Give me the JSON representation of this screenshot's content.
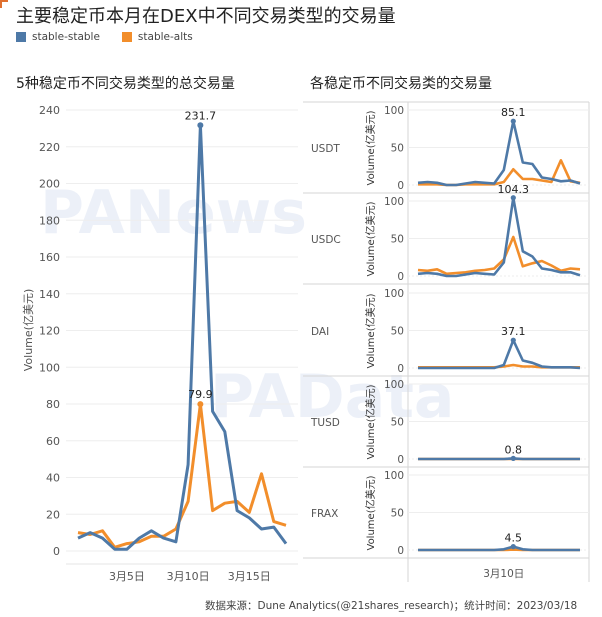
{
  "header": {
    "title": "主要稳定币本月在DEX中不同交易类型的交易量",
    "legend": [
      {
        "label": "stable-stable",
        "color": "#4e79a7"
      },
      {
        "label": "stable-alts",
        "color": "#f28e2b"
      }
    ]
  },
  "left_panel": {
    "title": "5种稳定币不同交易类型的总交易量"
  },
  "right_panel": {
    "title": "各稳定币不同交易类的交易量"
  },
  "footer": {
    "source": "数据来源：Dune Analytics(@21shares_research)；统计时间：2023/03/18"
  },
  "watermarks": [
    "PANews",
    "PAData"
  ],
  "colors": {
    "stable_stable": "#4e79a7",
    "stable_alts": "#f28e2b",
    "grid": "#eeeeee"
  },
  "chart_data": [
    {
      "type": "line",
      "title": "5种稳定币不同交易类型的总交易量",
      "xlabel": "",
      "ylabel": "Volume(亿美元)",
      "ylim": [
        0,
        240
      ],
      "yticks": [
        0,
        20,
        40,
        60,
        80,
        100,
        120,
        140,
        160,
        180,
        200,
        220,
        240
      ],
      "x": [
        "3月1日",
        "3月2日",
        "3月3日",
        "3月4日",
        "3月5日",
        "3月6日",
        "3月7日",
        "3月8日",
        "3月9日",
        "3月10日",
        "3月11日",
        "3月12日",
        "3月13日",
        "3月14日",
        "3月15日",
        "3月16日",
        "3月17日",
        "3月18日"
      ],
      "xtick_labels": [
        {
          "index": 4,
          "label": "3月5日"
        },
        {
          "index": 9,
          "label": "3月10日"
        },
        {
          "index": 14,
          "label": "3月15日"
        }
      ],
      "grid": true,
      "series": [
        {
          "name": "stable-stable",
          "color": "#4e79a7",
          "values": [
            7,
            10,
            7,
            1,
            1,
            7,
            11,
            7,
            5,
            47,
            231.7,
            76,
            65,
            22,
            18,
            12,
            13,
            4
          ]
        },
        {
          "name": "stable-alts",
          "color": "#f28e2b",
          "values": [
            10,
            9,
            11,
            2,
            4,
            5,
            8,
            8,
            12,
            27,
            79.9,
            22,
            26,
            27,
            21,
            42,
            16,
            14
          ]
        }
      ],
      "annotations": [
        {
          "series": "stable-stable",
          "index": 10,
          "text": "231.7"
        },
        {
          "series": "stable-alts",
          "index": 10,
          "text": "79.9"
        }
      ]
    },
    {
      "type": "line",
      "title": "各稳定币不同交易类的交易量",
      "ylabel": "Volume(亿美元)",
      "ylim": [
        0,
        100
      ],
      "yticks": [
        0,
        50,
        100
      ],
      "x": [
        "3月1日",
        "3月2日",
        "3月3日",
        "3月4日",
        "3月5日",
        "3月6日",
        "3月7日",
        "3月8日",
        "3月9日",
        "3月10日",
        "3月11日",
        "3月12日",
        "3月13日",
        "3月14日",
        "3月15日",
        "3月16日",
        "3月17日",
        "3月18日"
      ],
      "xtick_labels": [
        {
          "index": 9,
          "label": "3月10日"
        }
      ],
      "grid": true,
      "panels": [
        {
          "name": "USDT",
          "annotation": "85.1",
          "series": [
            {
              "name": "stable-stable",
              "values": [
                3,
                4,
                3,
                0,
                0,
                2,
                4,
                3,
                2,
                20,
                85.1,
                30,
                28,
                10,
                8,
                5,
                6,
                2
              ]
            },
            {
              "name": "stable-alts",
              "values": [
                1,
                1,
                1,
                0,
                0,
                1,
                1,
                1,
                1,
                4,
                21,
                8,
                8,
                6,
                4,
                33,
                5,
                3
              ]
            }
          ]
        },
        {
          "name": "USDC",
          "annotation": "104.3",
          "series": [
            {
              "name": "stable-stable",
              "values": [
                3,
                4,
                3,
                0,
                0,
                2,
                4,
                3,
                2,
                18,
                104.3,
                33,
                26,
                10,
                8,
                5,
                5,
                1
              ]
            },
            {
              "name": "stable-alts",
              "values": [
                8,
                7,
                9,
                3,
                4,
                5,
                7,
                8,
                10,
                22,
                52,
                13,
                17,
                20,
                14,
                7,
                10,
                9
              ]
            }
          ]
        },
        {
          "name": "DAI",
          "annotation": "37.1",
          "series": [
            {
              "name": "stable-stable",
              "values": [
                0,
                0,
                0,
                0,
                0,
                0,
                0,
                0,
                0,
                4,
                37.1,
                10,
                7,
                2,
                1,
                1,
                1,
                0
              ]
            },
            {
              "name": "stable-alts",
              "values": [
                1,
                1,
                1,
                1,
                1,
                1,
                1,
                1,
                1,
                2,
                4,
                2,
                2,
                1,
                1,
                1,
                1,
                1
              ]
            }
          ]
        },
        {
          "name": "TUSD",
          "annotation": "0.8",
          "series": [
            {
              "name": "stable-stable",
              "values": [
                0,
                0,
                0,
                0,
                0,
                0,
                0,
                0,
                0,
                0,
                0.8,
                0,
                0,
                0,
                0,
                0,
                0,
                0
              ]
            },
            {
              "name": "stable-alts",
              "values": [
                0,
                0,
                0,
                0,
                0,
                0,
                0,
                0,
                0,
                0,
                0.3,
                0,
                0,
                0,
                0,
                0,
                0,
                0
              ]
            }
          ]
        },
        {
          "name": "FRAX",
          "annotation": "4.5",
          "series": [
            {
              "name": "stable-stable",
              "values": [
                0,
                0,
                0,
                0,
                0,
                0,
                0,
                0,
                0,
                1,
                4.5,
                1,
                0,
                0,
                0,
                0,
                0,
                0
              ]
            },
            {
              "name": "stable-alts",
              "values": [
                0,
                0,
                0,
                0,
                0,
                0,
                0,
                0,
                0,
                0,
                0.5,
                0,
                0,
                0,
                0,
                0,
                0,
                0
              ]
            }
          ]
        }
      ]
    }
  ]
}
